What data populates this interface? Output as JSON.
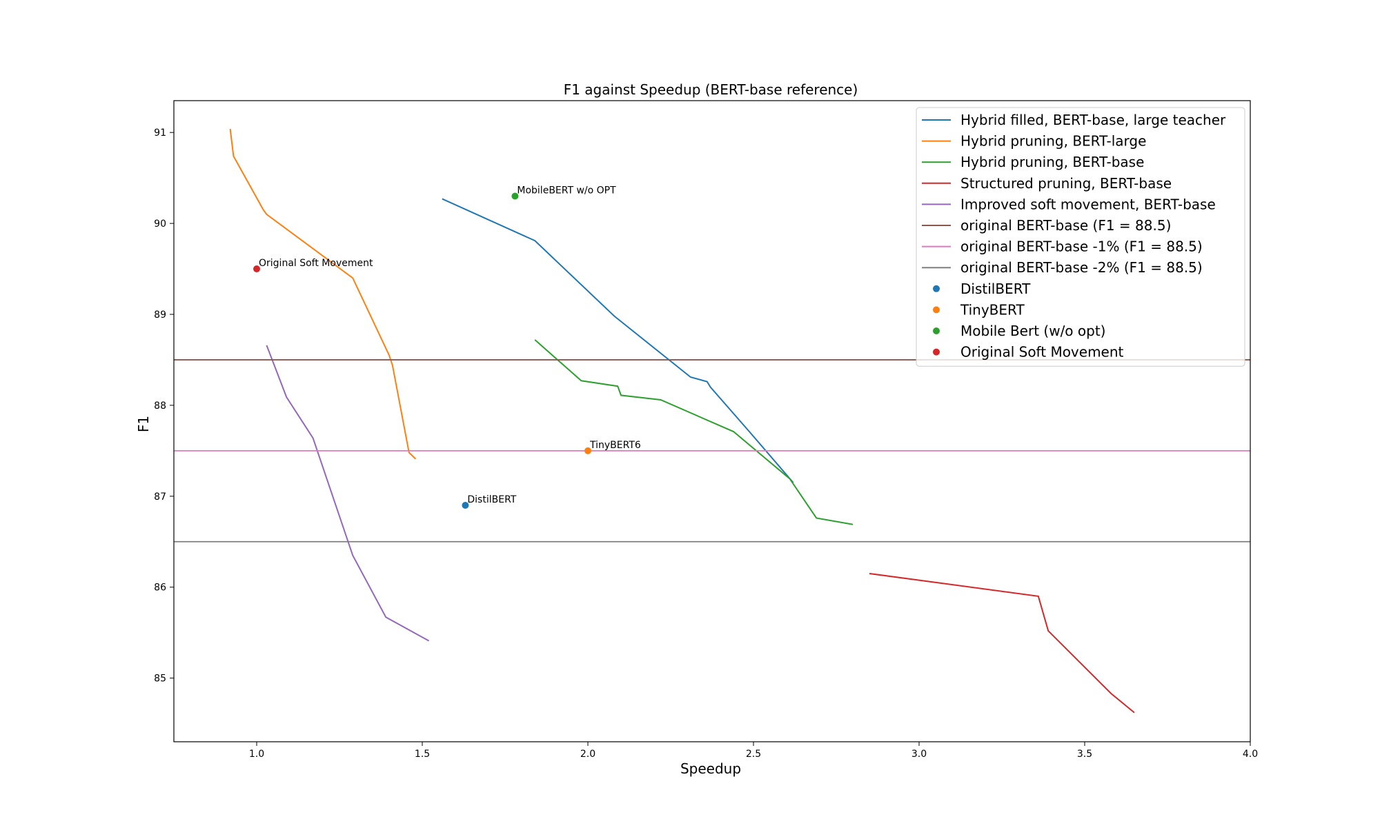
{
  "chart_data": {
    "type": "line",
    "title": "F1 against Speedup (BERT-base reference)",
    "xlabel": "Speedup",
    "ylabel": "F1",
    "xlim": [
      0.75,
      4.0
    ],
    "ylim": [
      84.3,
      91.35
    ],
    "xticks": [
      1.0,
      1.5,
      2.0,
      2.5,
      3.0,
      3.5,
      4.0
    ],
    "xtick_labels": [
      "1.0",
      "1.5",
      "2.0",
      "2.5",
      "3.0",
      "3.5",
      "4.0"
    ],
    "yticks": [
      85,
      86,
      87,
      88,
      89,
      90,
      91
    ],
    "ytick_labels": [
      "85",
      "86",
      "87",
      "88",
      "89",
      "90",
      "91"
    ],
    "grid": false,
    "legend_position": "top-right",
    "series": [
      {
        "name": "Hybrid filled, BERT-base, large teacher",
        "color": "#1f77b4",
        "points": [
          [
            1.56,
            90.27
          ],
          [
            1.84,
            89.81
          ],
          [
            2.08,
            88.98
          ],
          [
            2.31,
            88.31
          ],
          [
            2.36,
            88.26
          ],
          [
            2.37,
            88.2
          ],
          [
            2.49,
            87.7
          ],
          [
            2.62,
            87.15
          ]
        ]
      },
      {
        "name": "Hybrid pruning, BERT-large",
        "color": "#ff7f0e",
        "points": [
          [
            0.92,
            91.04
          ],
          [
            0.93,
            90.74
          ],
          [
            1.02,
            90.15
          ],
          [
            1.03,
            90.1
          ],
          [
            1.29,
            89.4
          ],
          [
            1.4,
            88.55
          ],
          [
            1.41,
            88.44
          ],
          [
            1.46,
            87.48
          ],
          [
            1.48,
            87.41
          ]
        ]
      },
      {
        "name": "Hybrid pruning, BERT-base",
        "color": "#2ca02c",
        "points": [
          [
            1.84,
            88.72
          ],
          [
            1.98,
            88.27
          ],
          [
            2.09,
            88.21
          ],
          [
            2.1,
            88.11
          ],
          [
            2.22,
            88.06
          ],
          [
            2.44,
            87.71
          ],
          [
            2.61,
            87.19
          ],
          [
            2.69,
            86.76
          ],
          [
            2.8,
            86.69
          ]
        ]
      },
      {
        "name": "Structured pruning, BERT-base",
        "color": "#d62728",
        "points": [
          [
            2.85,
            86.15
          ],
          [
            3.36,
            85.9
          ],
          [
            3.39,
            85.52
          ],
          [
            3.58,
            84.83
          ],
          [
            3.65,
            84.62
          ]
        ]
      },
      {
        "name": "Improved soft movement, BERT-base",
        "color": "#9467bd",
        "points": [
          [
            1.03,
            88.66
          ],
          [
            1.09,
            88.09
          ],
          [
            1.17,
            87.64
          ],
          [
            1.29,
            86.35
          ],
          [
            1.39,
            85.67
          ],
          [
            1.52,
            85.41
          ]
        ]
      },
      {
        "name": "original BERT-base (F1 = 88.5)",
        "color": "#8c564b",
        "hline": 88.5
      },
      {
        "name": "original BERT-base -1% (F1 = 88.5)",
        "color": "#e377c2",
        "hline": 87.5
      },
      {
        "name": "original BERT-base -2% (F1 = 88.5)",
        "color": "#7f7f7f",
        "hline": 86.5
      }
    ],
    "scatter": [
      {
        "name": "DistilBERT",
        "color": "#1f77b4",
        "x": 1.63,
        "y": 86.9,
        "annotation": "DistilBERT"
      },
      {
        "name": "TinyBERT",
        "color": "#ff7f0e",
        "x": 2.0,
        "y": 87.5,
        "annotation": "TinyBERT6"
      },
      {
        "name": "Mobile Bert (w/o opt)",
        "color": "#2ca02c",
        "x": 1.78,
        "y": 90.3,
        "annotation": "MobileBERT w/o OPT"
      },
      {
        "name": "Original Soft Movement",
        "color": "#d62728",
        "x": 1.0,
        "y": 89.5,
        "annotation": "Original Soft Movement"
      }
    ]
  }
}
